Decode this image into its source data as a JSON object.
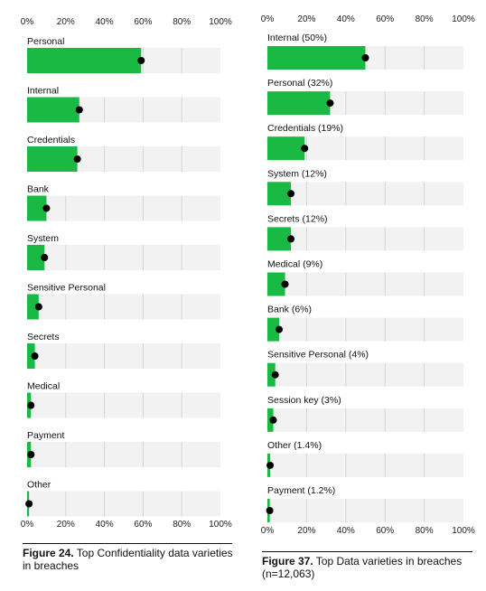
{
  "chart_data": [
    {
      "type": "bar",
      "title": "",
      "xlabel": "",
      "ylabel": "",
      "xlim": [
        0,
        100
      ],
      "x_ticks": [
        "0%",
        "20%",
        "40%",
        "60%",
        "80%",
        "100%"
      ],
      "grid": true,
      "categories": [
        "Personal",
        "Internal",
        "Credentials",
        "Bank",
        "System",
        "Sensitive Personal",
        "Secrets",
        "Medical",
        "Payment",
        "Other"
      ],
      "values": [
        59,
        27,
        26,
        10,
        9,
        6,
        4,
        2,
        2,
        1
      ],
      "colors": {
        "bar": "#19b943",
        "track": "#f2f2f2",
        "marker": "#000000",
        "grid": "#d4d4d4"
      }
    },
    {
      "type": "bar",
      "title": "",
      "xlabel": "",
      "ylabel": "",
      "xlim": [
        0,
        100
      ],
      "x_ticks": [
        "0%",
        "20%",
        "40%",
        "60%",
        "80%",
        "100%"
      ],
      "grid": true,
      "categories": [
        "Internal (50%)",
        "Personal (32%)",
        "Credentials (19%)",
        "System (12%)",
        "Secrets (12%)",
        "Medical (9%)",
        "Bank (6%)",
        "Sensitive Personal (4%)",
        "Session key (3%)",
        "Other (1.4%)",
        "Payment (1.2%)"
      ],
      "values": [
        50,
        32,
        19,
        12,
        12,
        9,
        6,
        4,
        3,
        1.4,
        1.2
      ],
      "colors": {
        "bar": "#19b943",
        "track": "#f2f2f2",
        "marker": "#000000",
        "grid": "#d4d4d4"
      }
    }
  ],
  "captions": {
    "left": {
      "prefix": "Figure 24.",
      "text": " Top Confidentiality data varieties in breaches"
    },
    "right": {
      "prefix": "Figure 37.",
      "text": " Top Data varieties in breaches (n=12,063)"
    }
  }
}
